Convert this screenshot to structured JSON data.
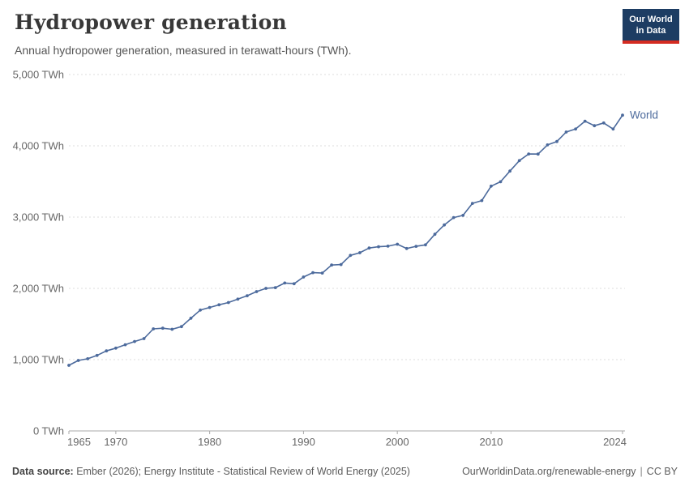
{
  "header": {
    "logo": {
      "line1": "Our World",
      "line2": "in Data"
    }
  },
  "chart_data": {
    "type": "line",
    "title": "Hydropower generation",
    "subtitle": "Annual hydropower generation, measured in terawatt-hours (TWh).",
    "unit": "TWh",
    "ylim": [
      0,
      5000
    ],
    "xlim": [
      1965,
      2024
    ],
    "grid": "horizontal-dashed",
    "legend": "end-of-line-label",
    "yticks": [
      {
        "value": 0,
        "label": "0 TWh"
      },
      {
        "value": 1000,
        "label": "1,000 TWh"
      },
      {
        "value": 2000,
        "label": "2,000 TWh"
      },
      {
        "value": 3000,
        "label": "3,000 TWh"
      },
      {
        "value": 4000,
        "label": "4,000 TWh"
      },
      {
        "value": 5000,
        "label": "5,000 TWh"
      }
    ],
    "xticks": [
      {
        "value": 1965,
        "label": "1965"
      },
      {
        "value": 1970,
        "label": "1970"
      },
      {
        "value": 1980,
        "label": "1980"
      },
      {
        "value": 1990,
        "label": "1990"
      },
      {
        "value": 2000,
        "label": "2000"
      },
      {
        "value": 2010,
        "label": "2010"
      },
      {
        "value": 2024,
        "label": "2024"
      }
    ],
    "x": [
      1965,
      1966,
      1967,
      1968,
      1969,
      1970,
      1971,
      1972,
      1973,
      1974,
      1975,
      1976,
      1977,
      1978,
      1979,
      1980,
      1981,
      1982,
      1983,
      1984,
      1985,
      1986,
      1987,
      1988,
      1989,
      1990,
      1991,
      1992,
      1993,
      1994,
      1995,
      1996,
      1997,
      1998,
      1999,
      2000,
      2001,
      2002,
      2003,
      2004,
      2005,
      2006,
      2007,
      2008,
      2009,
      2010,
      2011,
      2012,
      2013,
      2014,
      2015,
      2016,
      2017,
      2018,
      2019,
      2020,
      2021,
      2022,
      2023,
      2024
    ],
    "series": [
      {
        "name": "World",
        "color": "#4C6A9C",
        "values": [
          920,
          989,
          1012,
          1059,
          1123,
          1161,
          1209,
          1254,
          1296,
          1432,
          1441,
          1426,
          1464,
          1581,
          1695,
          1732,
          1769,
          1801,
          1849,
          1897,
          1954,
          2000,
          2010,
          2075,
          2065,
          2159,
          2221,
          2215,
          2327,
          2334,
          2462,
          2500,
          2566,
          2584,
          2592,
          2619,
          2559,
          2590,
          2610,
          2759,
          2890,
          2993,
          3024,
          3192,
          3232,
          3434,
          3495,
          3646,
          3792,
          3885,
          3884,
          4013,
          4060,
          4193,
          4235,
          4346,
          4282,
          4320,
          4235,
          4430
        ]
      }
    ]
  },
  "colors": {
    "line": "#4C6A9C",
    "grid": "#dcdcdc",
    "axis": "#a8a8a8",
    "tick_text": "#666666",
    "logo_bg": "#1d3d63",
    "logo_stripe": "#d42b21"
  },
  "footer": {
    "source_label": "Data source:",
    "source_text": " Ember (2026); Energy Institute - Statistical Review of World Energy (2025)",
    "link": "OurWorldinData.org/renewable-energy",
    "separator": "|",
    "license": "CC BY"
  }
}
